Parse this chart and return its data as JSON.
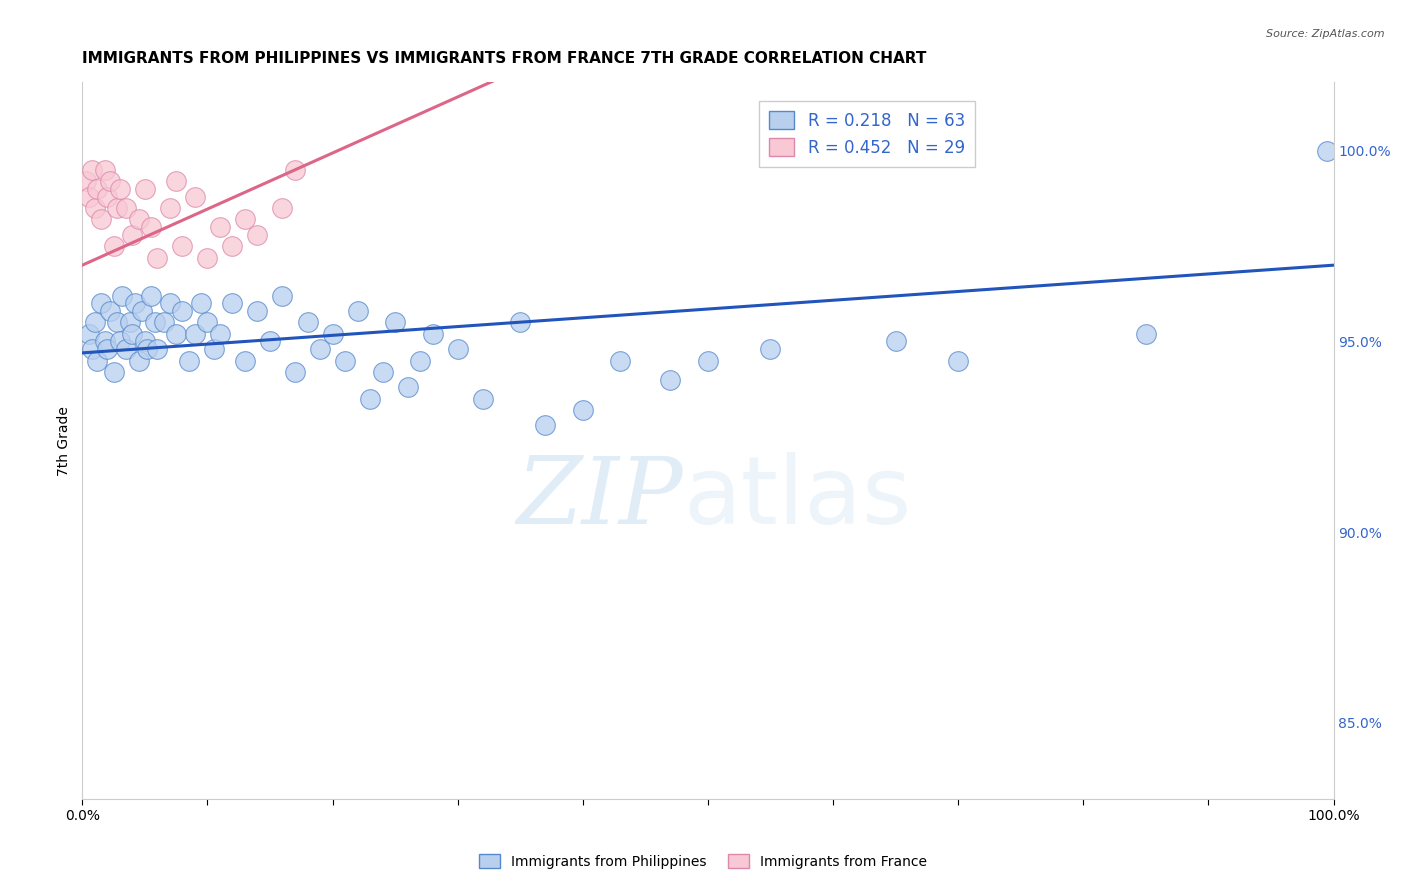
{
  "title": "IMMIGRANTS FROM PHILIPPINES VS IMMIGRANTS FROM FRANCE 7TH GRADE CORRELATION CHART",
  "source": "Source: ZipAtlas.com",
  "ylabel": "7th Grade",
  "right_yticks": [
    85.0,
    90.0,
    95.0,
    100.0
  ],
  "right_yticklabels": [
    "85.0%",
    "90.0%",
    "95.0%",
    "100.0%"
  ],
  "xlim": [
    0.0,
    100.0
  ],
  "ylim": [
    83.0,
    101.8
  ],
  "r_blue": 0.218,
  "n_blue": 63,
  "r_pink": 0.452,
  "n_pink": 29,
  "blue_color": "#b8d0ee",
  "blue_edge_color": "#5588cc",
  "blue_line_color": "#2255bb",
  "pink_color": "#f8c8d4",
  "pink_edge_color": "#dd88aa",
  "pink_line_color": "#dd6688",
  "blue_scatter_x": [
    0.5,
    0.8,
    1.0,
    1.2,
    1.5,
    1.8,
    2.0,
    2.2,
    2.5,
    2.8,
    3.0,
    3.2,
    3.5,
    3.8,
    4.0,
    4.2,
    4.5,
    4.8,
    5.0,
    5.2,
    5.5,
    5.8,
    6.0,
    6.5,
    7.0,
    7.5,
    8.0,
    8.5,
    9.0,
    9.5,
    10.0,
    10.5,
    11.0,
    12.0,
    13.0,
    14.0,
    15.0,
    16.0,
    17.0,
    18.0,
    19.0,
    20.0,
    21.0,
    22.0,
    23.0,
    24.0,
    25.0,
    26.0,
    27.0,
    28.0,
    30.0,
    32.0,
    35.0,
    37.0,
    40.0,
    43.0,
    47.0,
    50.0,
    55.0,
    65.0,
    70.0,
    85.0,
    99.5
  ],
  "blue_scatter_y": [
    95.2,
    94.8,
    95.5,
    94.5,
    96.0,
    95.0,
    94.8,
    95.8,
    94.2,
    95.5,
    95.0,
    96.2,
    94.8,
    95.5,
    95.2,
    96.0,
    94.5,
    95.8,
    95.0,
    94.8,
    96.2,
    95.5,
    94.8,
    95.5,
    96.0,
    95.2,
    95.8,
    94.5,
    95.2,
    96.0,
    95.5,
    94.8,
    95.2,
    96.0,
    94.5,
    95.8,
    95.0,
    96.2,
    94.2,
    95.5,
    94.8,
    95.2,
    94.5,
    95.8,
    93.5,
    94.2,
    95.5,
    93.8,
    94.5,
    95.2,
    94.8,
    93.5,
    95.5,
    92.8,
    93.2,
    94.5,
    94.0,
    94.5,
    94.8,
    95.0,
    94.5,
    95.2,
    100.0
  ],
  "pink_scatter_x": [
    0.3,
    0.5,
    0.8,
    1.0,
    1.2,
    1.5,
    1.8,
    2.0,
    2.2,
    2.5,
    2.8,
    3.0,
    3.5,
    4.0,
    4.5,
    5.0,
    5.5,
    6.0,
    7.0,
    7.5,
    8.0,
    9.0,
    10.0,
    11.0,
    12.0,
    13.0,
    14.0,
    16.0,
    17.0
  ],
  "pink_scatter_y": [
    99.2,
    98.8,
    99.5,
    98.5,
    99.0,
    98.2,
    99.5,
    98.8,
    99.2,
    97.5,
    98.5,
    99.0,
    98.5,
    97.8,
    98.2,
    99.0,
    98.0,
    97.2,
    98.5,
    99.2,
    97.5,
    98.8,
    97.2,
    98.0,
    97.5,
    98.2,
    97.8,
    98.5,
    99.5
  ],
  "blue_trend_start": 94.7,
  "blue_trend_end": 97.0,
  "pink_trend_start_x": 0.0,
  "pink_trend_start_y": 97.0,
  "pink_trend_end_x": 17.0,
  "pink_trend_end_y": 99.5,
  "watermark_zip": "ZIP",
  "watermark_atlas": "atlas",
  "background_color": "#ffffff",
  "grid_color": "#cccccc",
  "title_fontsize": 11,
  "axis_label_fontsize": 10,
  "tick_fontsize": 10,
  "tick_color": "#3366cc"
}
